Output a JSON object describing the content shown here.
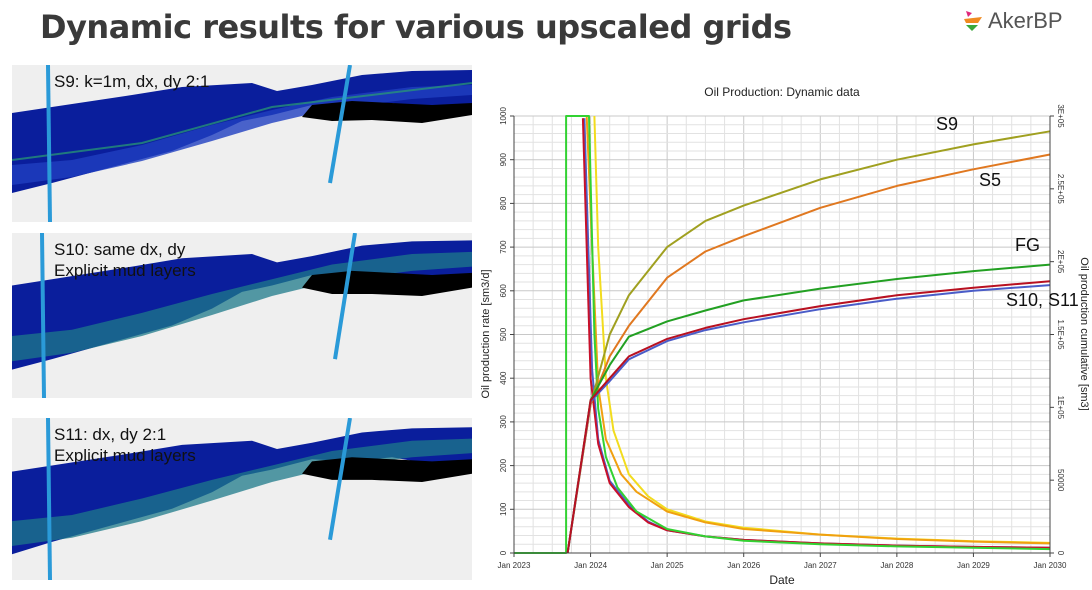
{
  "slide": {
    "title": "Dynamic results for various upscaled grids",
    "logo_text": "AkerBP"
  },
  "panels": [
    {
      "lines": [
        "S9: k=1m, dx, dy 2:1"
      ]
    },
    {
      "lines": [
        "S10: same dx, dy",
        "Explicit mud layers"
      ]
    },
    {
      "lines": [
        "S11: dx, dy 2:1",
        "Explicit mud layers"
      ]
    }
  ],
  "chart_data": {
    "type": "line",
    "title": "Oil Production: Dynamic data",
    "xlabel": "Date",
    "ylabel": "Oil production rate [sm3/d]",
    "y2label": "Oil production cumulative [sm3]",
    "xlim": [
      2023,
      2030
    ],
    "ylim": [
      0,
      1000
    ],
    "y2lim": [
      0,
      300000
    ],
    "grid": true,
    "x_ticks": [
      "Jan 2023",
      "Jan 2024",
      "Jan 2025",
      "Jan 2026",
      "Jan 2027",
      "Jan 2028",
      "Jan 2029",
      "Jan 2030"
    ],
    "y_ticks": [
      "0",
      "100",
      "200",
      "300",
      "400",
      "500",
      "600",
      "700",
      "800",
      "900",
      "1000"
    ],
    "y2_ticks": [
      "0",
      "50000",
      "1E+05",
      "1.5E+05",
      "2E+05",
      "2.5E+05",
      "3E+05"
    ],
    "annotations": [
      "S9",
      "S5",
      "FG",
      "S10, S11"
    ],
    "rate_series": [
      {
        "name": "S9 rate",
        "color": "#f2dc1e",
        "points": [
          [
            2024.05,
            1000
          ],
          [
            2024.1,
            700
          ],
          [
            2024.2,
            400
          ],
          [
            2024.3,
            280
          ],
          [
            2024.5,
            180
          ],
          [
            2024.75,
            130
          ],
          [
            2025,
            100
          ],
          [
            2025.5,
            72
          ],
          [
            2026,
            58
          ],
          [
            2027,
            42
          ],
          [
            2028,
            33
          ],
          [
            2029,
            27
          ],
          [
            2030,
            23
          ]
        ]
      },
      {
        "name": "S5 rate",
        "color": "#f0a010",
        "points": [
          [
            2023.95,
            1000
          ],
          [
            2024.02,
            700
          ],
          [
            2024.1,
            380
          ],
          [
            2024.2,
            260
          ],
          [
            2024.4,
            180
          ],
          [
            2024.6,
            140
          ],
          [
            2025,
            95
          ],
          [
            2025.5,
            70
          ],
          [
            2026,
            55
          ],
          [
            2027,
            42
          ],
          [
            2028,
            32
          ],
          [
            2029,
            26
          ],
          [
            2030,
            22
          ]
        ]
      },
      {
        "name": "S11 rate",
        "color": "#4a62c8",
        "points": [
          [
            2023.92,
            995
          ],
          [
            2023.97,
            700
          ],
          [
            2024.02,
            420
          ],
          [
            2024.1,
            260
          ],
          [
            2024.25,
            165
          ],
          [
            2024.5,
            110
          ],
          [
            2024.75,
            72
          ],
          [
            2025,
            52
          ],
          [
            2025.5,
            38
          ],
          [
            2026,
            30
          ],
          [
            2027,
            22
          ],
          [
            2028,
            17
          ],
          [
            2029,
            14
          ],
          [
            2030,
            12
          ]
        ]
      },
      {
        "name": "S10 rate",
        "color": "#c8102a",
        "points": [
          [
            2023.9,
            995
          ],
          [
            2023.95,
            700
          ],
          [
            2024.0,
            400
          ],
          [
            2024.1,
            250
          ],
          [
            2024.25,
            160
          ],
          [
            2024.5,
            105
          ],
          [
            2024.75,
            70
          ],
          [
            2025,
            52
          ],
          [
            2025.5,
            38
          ],
          [
            2026,
            30
          ],
          [
            2027,
            22
          ],
          [
            2028,
            17
          ],
          [
            2029,
            14
          ],
          [
            2030,
            12
          ]
        ]
      },
      {
        "name": "FG rate",
        "color": "#32d232",
        "points": [
          [
            2023,
            0
          ],
          [
            2023.68,
            0
          ],
          [
            2023.68,
            1000
          ],
          [
            2023.98,
            1000
          ],
          [
            2024.05,
            500
          ],
          [
            2024.1,
            330
          ],
          [
            2024.2,
            220
          ],
          [
            2024.35,
            150
          ],
          [
            2024.6,
            95
          ],
          [
            2025,
            55
          ],
          [
            2025.5,
            38
          ],
          [
            2026,
            28
          ],
          [
            2027,
            20
          ],
          [
            2028,
            15
          ],
          [
            2029,
            12
          ],
          [
            2030,
            9
          ]
        ]
      }
    ],
    "cumulative_series": [
      {
        "name": "S9",
        "color": "#a0a020",
        "points": [
          [
            2023.7,
            0
          ],
          [
            2024,
            102000
          ],
          [
            2024.25,
            150000
          ],
          [
            2024.5,
            177000
          ],
          [
            2025,
            210000
          ],
          [
            2025.5,
            228000
          ],
          [
            2026,
            238500
          ],
          [
            2027,
            256500
          ],
          [
            2028,
            270000
          ],
          [
            2029,
            280500
          ],
          [
            2030,
            289500
          ]
        ]
      },
      {
        "name": "S5",
        "color": "#e07820",
        "points": [
          [
            2023.7,
            0
          ],
          [
            2024,
            102000
          ],
          [
            2024.25,
            135000
          ],
          [
            2024.5,
            156000
          ],
          [
            2025,
            189000
          ],
          [
            2025.5,
            207000
          ],
          [
            2026,
            217500
          ],
          [
            2027,
            237000
          ],
          [
            2028,
            252000
          ],
          [
            2029,
            263400
          ],
          [
            2030,
            273600
          ]
        ]
      },
      {
        "name": "FG",
        "color": "#22a022",
        "points": [
          [
            2023.7,
            0
          ],
          [
            2024,
            105000
          ],
          [
            2024.25,
            129000
          ],
          [
            2024.5,
            148500
          ],
          [
            2025,
            159000
          ],
          [
            2025.5,
            166500
          ],
          [
            2026,
            173400
          ],
          [
            2027,
            181500
          ],
          [
            2028,
            188100
          ],
          [
            2029,
            193500
          ],
          [
            2030,
            198000
          ]
        ]
      },
      {
        "name": "S11",
        "color": "#4a5cc8",
        "points": [
          [
            2023.7,
            0
          ],
          [
            2024,
            104000
          ],
          [
            2024.25,
            118000
          ],
          [
            2024.5,
            133000
          ],
          [
            2025,
            145500
          ],
          [
            2025.5,
            153000
          ],
          [
            2026,
            158400
          ],
          [
            2027,
            167400
          ],
          [
            2028,
            174600
          ],
          [
            2029,
            180000
          ],
          [
            2030,
            183900
          ]
        ]
      },
      {
        "name": "S10",
        "color": "#b81020",
        "points": [
          [
            2023.7,
            0
          ],
          [
            2024,
            105000
          ],
          [
            2024.25,
            120000
          ],
          [
            2024.5,
            135000
          ],
          [
            2025,
            147000
          ],
          [
            2025.5,
            154500
          ],
          [
            2026,
            160500
          ],
          [
            2027,
            169500
          ],
          [
            2028,
            177000
          ],
          [
            2029,
            182100
          ],
          [
            2030,
            186600
          ]
        ]
      }
    ]
  }
}
